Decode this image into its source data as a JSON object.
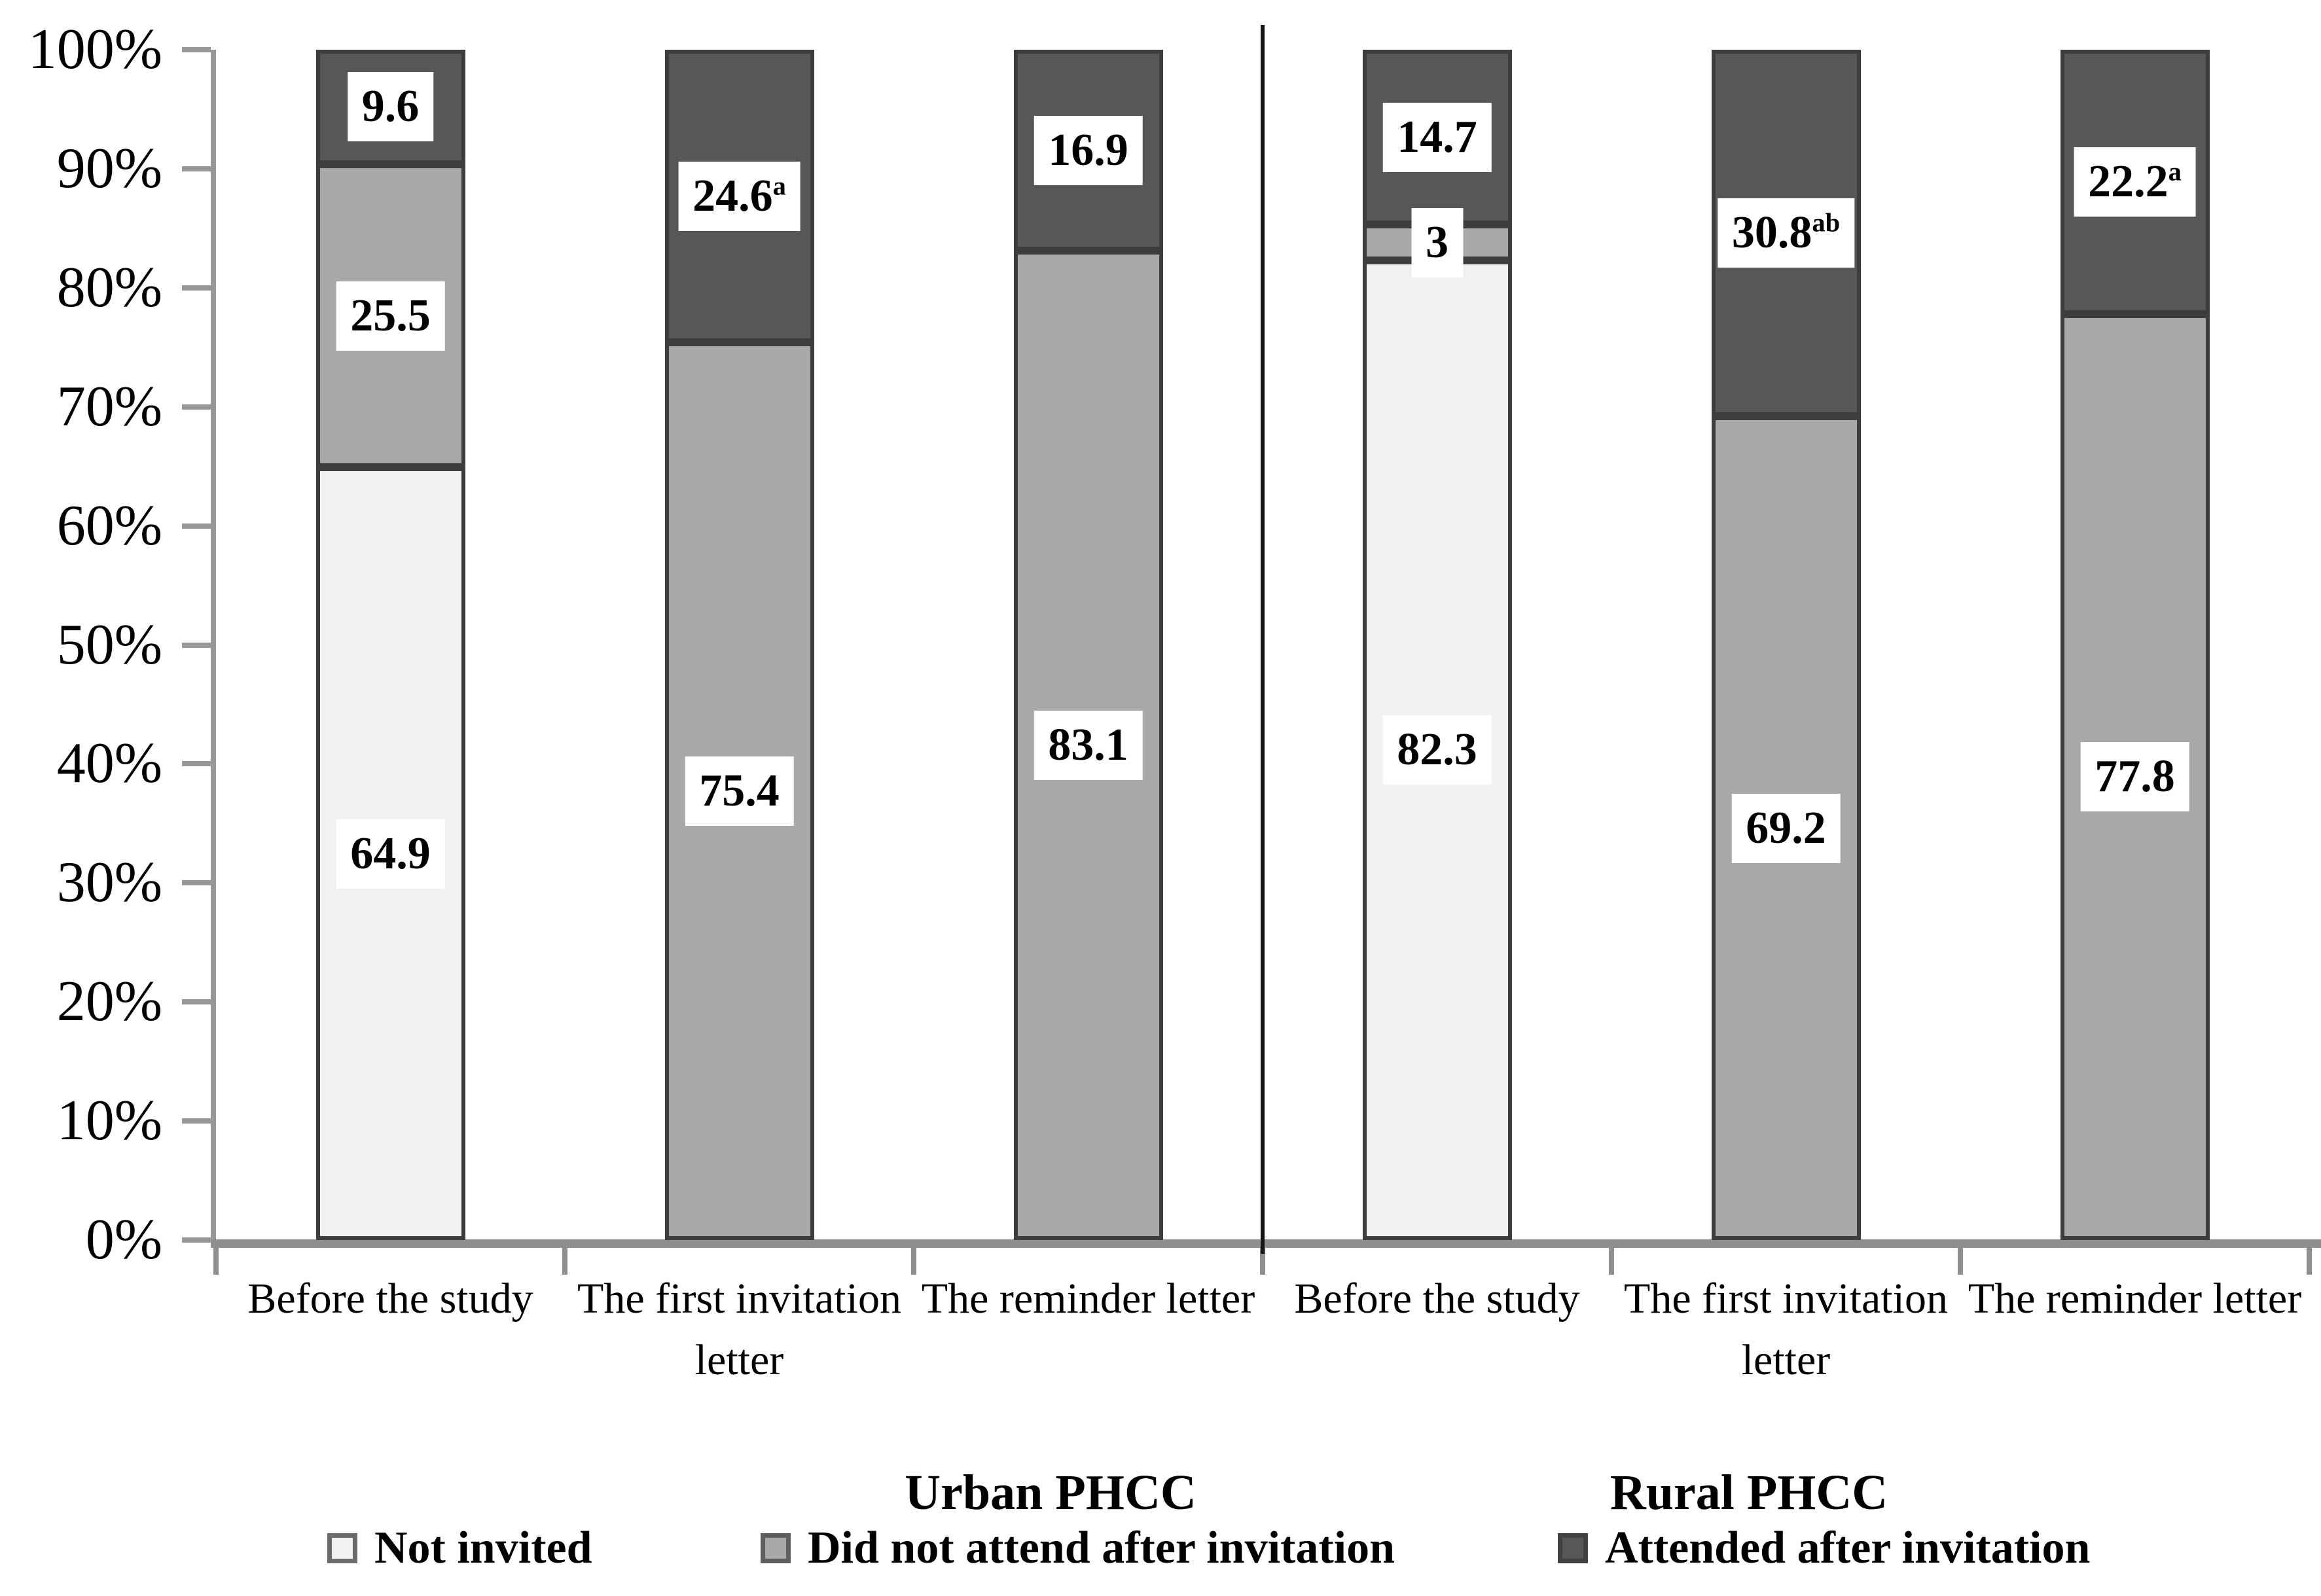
{
  "chart_data": {
    "type": "bar",
    "stacked": true,
    "title": "",
    "xlabel": "",
    "ylabel": "",
    "ylim": [
      0,
      100
    ],
    "grid": false,
    "legend_position": "bottom",
    "y_ticks": [
      "0%",
      "10%",
      "20%",
      "30%",
      "40%",
      "50%",
      "60%",
      "70%",
      "80%",
      "90%",
      "100%"
    ],
    "group_labels": [
      "Urban PHCC",
      "Rural PHCC"
    ],
    "categories": [
      "Before the study",
      "The first invitation letter",
      "The reminder letter",
      "Before the study",
      "The first invitation letter",
      "The reminder letter"
    ],
    "series": [
      {
        "name": "Not invited",
        "fill": "#f1f1f1"
      },
      {
        "name": "Did not attend after invitation",
        "fill": "#a8a8a8"
      },
      {
        "name": "Attended after invitation",
        "fill": "#575757"
      }
    ],
    "bars": [
      {
        "group": "Urban PHCC",
        "category": "Before the study",
        "segments": [
          {
            "series": "Not invited",
            "value": 64.9,
            "label": "64.9",
            "sup": ""
          },
          {
            "series": "Did not attend after invitation",
            "value": 25.5,
            "label": "25.5",
            "sup": ""
          },
          {
            "series": "Attended after invitation",
            "value": 9.6,
            "label": "9.6",
            "sup": ""
          }
        ]
      },
      {
        "group": "Urban PHCC",
        "category": "The first invitation letter",
        "segments": [
          {
            "series": "Did not attend after invitation",
            "value": 75.4,
            "label": "75.4",
            "sup": ""
          },
          {
            "series": "Attended after invitation",
            "value": 24.6,
            "label": "24.6",
            "sup": "a"
          }
        ]
      },
      {
        "group": "Urban PHCC",
        "category": "The reminder letter",
        "segments": [
          {
            "series": "Did not attend after invitation",
            "value": 83.1,
            "label": "83.1",
            "sup": ""
          },
          {
            "series": "Attended after invitation",
            "value": 16.9,
            "label": "16.9",
            "sup": ""
          }
        ]
      },
      {
        "group": "Rural PHCC",
        "category": "Before the study",
        "segments": [
          {
            "series": "Not invited",
            "value": 82.3,
            "label": "82.3",
            "sup": ""
          },
          {
            "series": "Did not attend after invitation",
            "value": 3,
            "label": "3",
            "sup": ""
          },
          {
            "series": "Attended after invitation",
            "value": 14.7,
            "label": "14.7",
            "sup": ""
          }
        ]
      },
      {
        "group": "Rural PHCC",
        "category": "The first invitation letter",
        "segments": [
          {
            "series": "Did not attend after invitation",
            "value": 69.2,
            "label": "69.2",
            "sup": ""
          },
          {
            "series": "Attended after invitation",
            "value": 30.8,
            "label": "30.8",
            "sup": "ab"
          }
        ]
      },
      {
        "group": "Rural PHCC",
        "category": "The reminder letter",
        "segments": [
          {
            "series": "Did not attend after invitation",
            "value": 77.8,
            "label": "77.8",
            "sup": ""
          },
          {
            "series": "Attended after invitation",
            "value": 22.2,
            "label": "22.2",
            "sup": "a"
          }
        ]
      }
    ]
  },
  "colors": {
    "axis": "#979797",
    "x_axis": "#8f8f8f",
    "divider": "#151515",
    "segment_border": "#3d3d3d",
    "label_box_bg": "#ffffff",
    "text": "#000000",
    "swatch_borders": [
      "#6b6b6b",
      "#5e5e5e",
      "#414141"
    ]
  }
}
